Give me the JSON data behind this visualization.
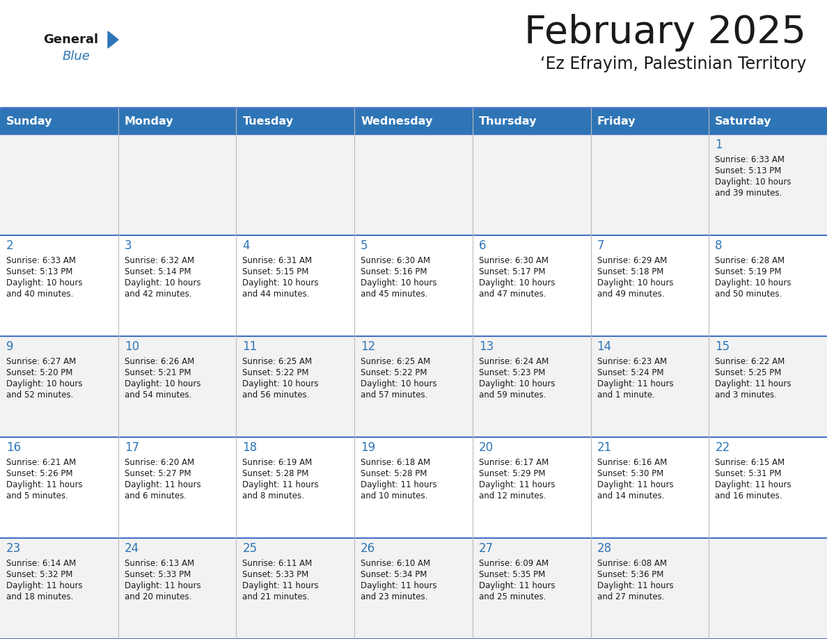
{
  "title": "February 2025",
  "subtitle": "‘Ez Efrayim, Palestinian Territory",
  "header_bg": "#2E75B6",
  "header_text_color": "#FFFFFF",
  "cell_bg_odd": "#F2F2F2",
  "cell_bg_even": "#FFFFFF",
  "day_names": [
    "Sunday",
    "Monday",
    "Tuesday",
    "Wednesday",
    "Thursday",
    "Friday",
    "Saturday"
  ],
  "text_color_dark": "#1a1a1a",
  "text_color_blue": "#2E75B6",
  "grid_color": "#4472C4",
  "days": [
    {
      "day": 1,
      "col": 6,
      "week": 0,
      "sunrise": "6:33 AM",
      "sunset": "5:13 PM",
      "daylight_h": "10 hours",
      "daylight_m": "and 39 minutes."
    },
    {
      "day": 2,
      "col": 0,
      "week": 1,
      "sunrise": "6:33 AM",
      "sunset": "5:13 PM",
      "daylight_h": "10 hours",
      "daylight_m": "and 40 minutes."
    },
    {
      "day": 3,
      "col": 1,
      "week": 1,
      "sunrise": "6:32 AM",
      "sunset": "5:14 PM",
      "daylight_h": "10 hours",
      "daylight_m": "and 42 minutes."
    },
    {
      "day": 4,
      "col": 2,
      "week": 1,
      "sunrise": "6:31 AM",
      "sunset": "5:15 PM",
      "daylight_h": "10 hours",
      "daylight_m": "and 44 minutes."
    },
    {
      "day": 5,
      "col": 3,
      "week": 1,
      "sunrise": "6:30 AM",
      "sunset": "5:16 PM",
      "daylight_h": "10 hours",
      "daylight_m": "and 45 minutes."
    },
    {
      "day": 6,
      "col": 4,
      "week": 1,
      "sunrise": "6:30 AM",
      "sunset": "5:17 PM",
      "daylight_h": "10 hours",
      "daylight_m": "and 47 minutes."
    },
    {
      "day": 7,
      "col": 5,
      "week": 1,
      "sunrise": "6:29 AM",
      "sunset": "5:18 PM",
      "daylight_h": "10 hours",
      "daylight_m": "and 49 minutes."
    },
    {
      "day": 8,
      "col": 6,
      "week": 1,
      "sunrise": "6:28 AM",
      "sunset": "5:19 PM",
      "daylight_h": "10 hours",
      "daylight_m": "and 50 minutes."
    },
    {
      "day": 9,
      "col": 0,
      "week": 2,
      "sunrise": "6:27 AM",
      "sunset": "5:20 PM",
      "daylight_h": "10 hours",
      "daylight_m": "and 52 minutes."
    },
    {
      "day": 10,
      "col": 1,
      "week": 2,
      "sunrise": "6:26 AM",
      "sunset": "5:21 PM",
      "daylight_h": "10 hours",
      "daylight_m": "and 54 minutes."
    },
    {
      "day": 11,
      "col": 2,
      "week": 2,
      "sunrise": "6:25 AM",
      "sunset": "5:22 PM",
      "daylight_h": "10 hours",
      "daylight_m": "and 56 minutes."
    },
    {
      "day": 12,
      "col": 3,
      "week": 2,
      "sunrise": "6:25 AM",
      "sunset": "5:22 PM",
      "daylight_h": "10 hours",
      "daylight_m": "and 57 minutes."
    },
    {
      "day": 13,
      "col": 4,
      "week": 2,
      "sunrise": "6:24 AM",
      "sunset": "5:23 PM",
      "daylight_h": "10 hours",
      "daylight_m": "and 59 minutes."
    },
    {
      "day": 14,
      "col": 5,
      "week": 2,
      "sunrise": "6:23 AM",
      "sunset": "5:24 PM",
      "daylight_h": "11 hours",
      "daylight_m": "and 1 minute."
    },
    {
      "day": 15,
      "col": 6,
      "week": 2,
      "sunrise": "6:22 AM",
      "sunset": "5:25 PM",
      "daylight_h": "11 hours",
      "daylight_m": "and 3 minutes."
    },
    {
      "day": 16,
      "col": 0,
      "week": 3,
      "sunrise": "6:21 AM",
      "sunset": "5:26 PM",
      "daylight_h": "11 hours",
      "daylight_m": "and 5 minutes."
    },
    {
      "day": 17,
      "col": 1,
      "week": 3,
      "sunrise": "6:20 AM",
      "sunset": "5:27 PM",
      "daylight_h": "11 hours",
      "daylight_m": "and 6 minutes."
    },
    {
      "day": 18,
      "col": 2,
      "week": 3,
      "sunrise": "6:19 AM",
      "sunset": "5:28 PM",
      "daylight_h": "11 hours",
      "daylight_m": "and 8 minutes."
    },
    {
      "day": 19,
      "col": 3,
      "week": 3,
      "sunrise": "6:18 AM",
      "sunset": "5:28 PM",
      "daylight_h": "11 hours",
      "daylight_m": "and 10 minutes."
    },
    {
      "day": 20,
      "col": 4,
      "week": 3,
      "sunrise": "6:17 AM",
      "sunset": "5:29 PM",
      "daylight_h": "11 hours",
      "daylight_m": "and 12 minutes."
    },
    {
      "day": 21,
      "col": 5,
      "week": 3,
      "sunrise": "6:16 AM",
      "sunset": "5:30 PM",
      "daylight_h": "11 hours",
      "daylight_m": "and 14 minutes."
    },
    {
      "day": 22,
      "col": 6,
      "week": 3,
      "sunrise": "6:15 AM",
      "sunset": "5:31 PM",
      "daylight_h": "11 hours",
      "daylight_m": "and 16 minutes."
    },
    {
      "day": 23,
      "col": 0,
      "week": 4,
      "sunrise": "6:14 AM",
      "sunset": "5:32 PM",
      "daylight_h": "11 hours",
      "daylight_m": "and 18 minutes."
    },
    {
      "day": 24,
      "col": 1,
      "week": 4,
      "sunrise": "6:13 AM",
      "sunset": "5:33 PM",
      "daylight_h": "11 hours",
      "daylight_m": "and 20 minutes."
    },
    {
      "day": 25,
      "col": 2,
      "week": 4,
      "sunrise": "6:11 AM",
      "sunset": "5:33 PM",
      "daylight_h": "11 hours",
      "daylight_m": "and 21 minutes."
    },
    {
      "day": 26,
      "col": 3,
      "week": 4,
      "sunrise": "6:10 AM",
      "sunset": "5:34 PM",
      "daylight_h": "11 hours",
      "daylight_m": "and 23 minutes."
    },
    {
      "day": 27,
      "col": 4,
      "week": 4,
      "sunrise": "6:09 AM",
      "sunset": "5:35 PM",
      "daylight_h": "11 hours",
      "daylight_m": "and 25 minutes."
    },
    {
      "day": 28,
      "col": 5,
      "week": 4,
      "sunrise": "6:08 AM",
      "sunset": "5:36 PM",
      "daylight_h": "11 hours",
      "daylight_m": "and 27 minutes."
    }
  ],
  "num_weeks": 5,
  "num_cols": 7,
  "logo_general_color": "#1a1a1a",
  "logo_blue_color": "#2E75B6",
  "logo_triangle_color": "#2E75B6"
}
